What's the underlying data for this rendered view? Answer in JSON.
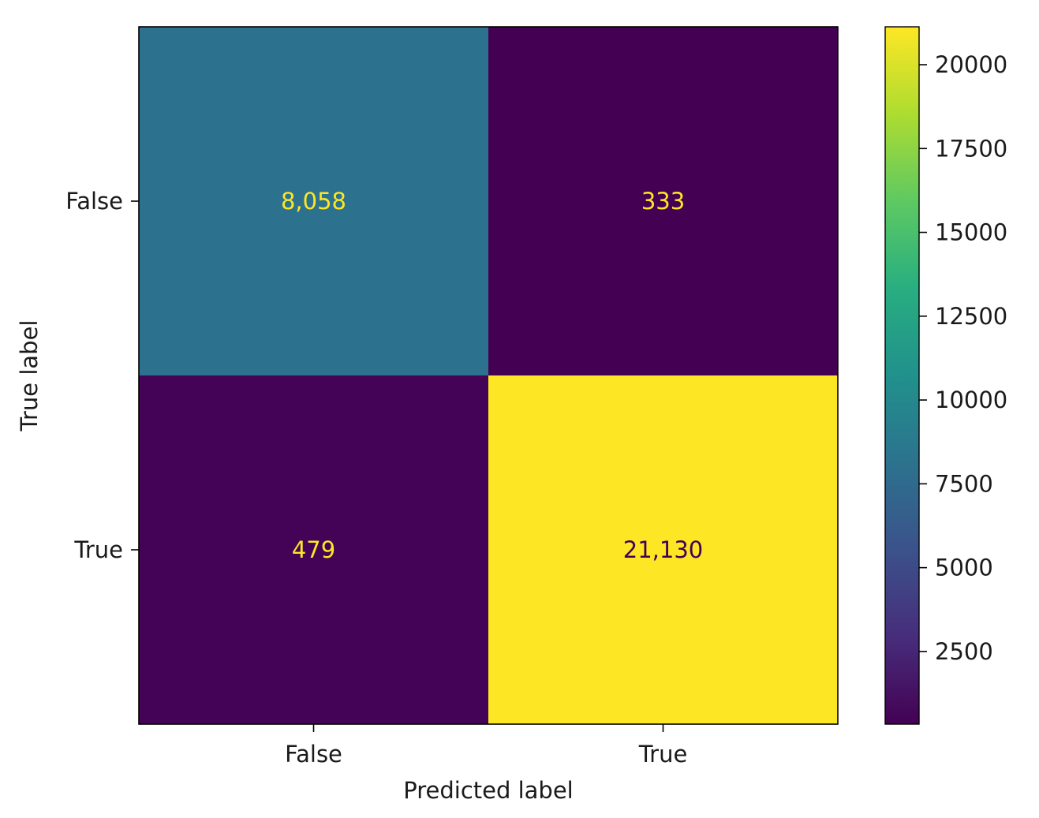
{
  "chart_data": {
    "type": "heatmap",
    "x_categories": [
      "False",
      "True"
    ],
    "y_categories": [
      "False",
      "True"
    ],
    "xlabel": "Predicted label",
    "ylabel": "True label",
    "values": [
      [
        8058,
        333
      ],
      [
        479,
        21130
      ]
    ],
    "cell_labels": [
      [
        "8,058",
        "333"
      ],
      [
        "479",
        "21,130"
      ]
    ],
    "colormap": "viridis",
    "colorbar": {
      "range": [
        333,
        21130
      ],
      "ticks": [
        2500,
        5000,
        7500,
        10000,
        12500,
        15000,
        17500,
        20000
      ]
    },
    "colors": {
      "high": "#fde725",
      "low": "#440154",
      "cell_8058": "#2d718e"
    }
  }
}
